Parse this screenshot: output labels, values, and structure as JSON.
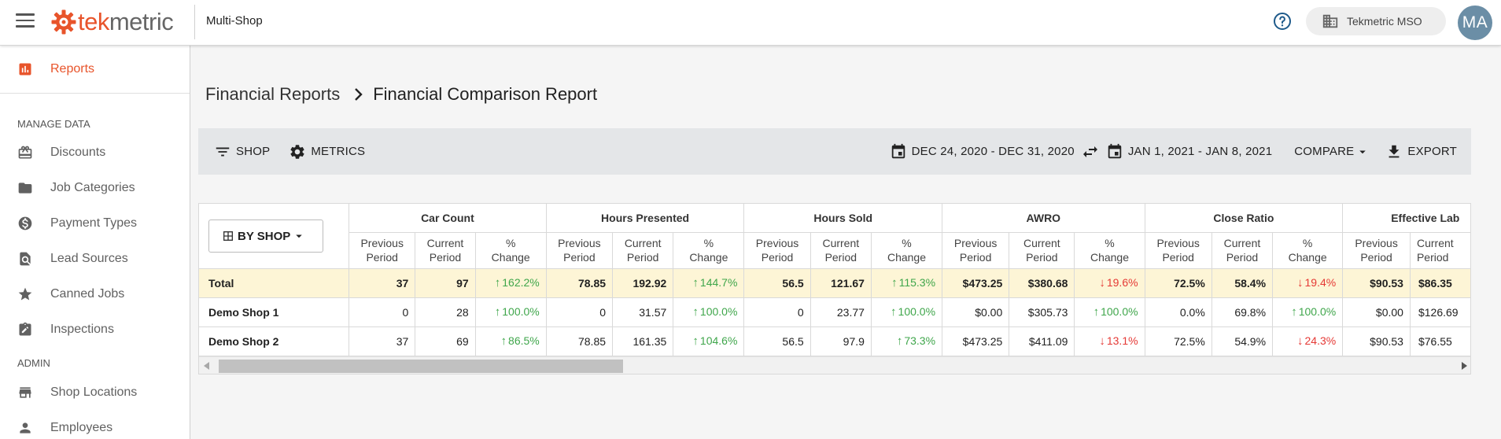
{
  "topbar": {
    "logo_prefix": "tek",
    "logo_suffix": "metric",
    "app_name": "Multi-Shop",
    "shop_selector": "Tekmetric MSO",
    "avatar_initials": "MA",
    "brand_color": "#e8542b"
  },
  "sidebar": {
    "active": "Reports",
    "sections": [
      {
        "title": "MANAGE DATA",
        "items": [
          {
            "label": "Discounts",
            "icon": "gift-box-icon"
          },
          {
            "label": "Job Categories",
            "icon": "folder-icon"
          },
          {
            "label": "Payment Types",
            "icon": "dollar-circle-icon"
          },
          {
            "label": "Lead Sources",
            "icon": "search-document-icon"
          },
          {
            "label": "Canned Jobs",
            "icon": "star-icon"
          },
          {
            "label": "Inspections",
            "icon": "clipboard-edit-icon"
          }
        ]
      },
      {
        "title": "ADMIN",
        "items": [
          {
            "label": "Shop Locations",
            "icon": "store-icon"
          },
          {
            "label": "Employees",
            "icon": "person-icon"
          }
        ]
      }
    ]
  },
  "breadcrumb": {
    "parent": "Financial Reports",
    "current": "Financial Comparison Report"
  },
  "toolbar": {
    "shop": "SHOP",
    "metrics": "METRICS",
    "range_a": "DEC 24, 2020 - DEC 31, 2020",
    "range_b": "JAN 1, 2021 - JAN 8, 2021",
    "compare": "COMPARE",
    "export": "EXPORT"
  },
  "table": {
    "group_by": "BY SHOP",
    "sub_headers": {
      "previous": [
        "Previous",
        "Period"
      ],
      "current": [
        "Current",
        "Period"
      ],
      "change": [
        "%",
        "Change"
      ]
    },
    "groups": [
      "Car Count",
      "Hours Presented",
      "Hours Sold",
      "AWRO",
      "Close Ratio",
      "Effective Lab"
    ],
    "rows": [
      {
        "name": "Total",
        "total": true,
        "cells": [
          [
            "37",
            "97",
            "162.2%",
            "up"
          ],
          [
            "78.85",
            "192.92",
            "144.7%",
            "up"
          ],
          [
            "56.5",
            "121.67",
            "115.3%",
            "up"
          ],
          [
            "$473.25",
            "$380.68",
            "19.6%",
            "down"
          ],
          [
            "72.5%",
            "58.4%",
            "19.4%",
            "down"
          ],
          [
            "$90.53",
            "$86.35"
          ]
        ]
      },
      {
        "name": "Demo Shop 1",
        "total": false,
        "cells": [
          [
            "0",
            "28",
            "100.0%",
            "up"
          ],
          [
            "0",
            "31.57",
            "100.0%",
            "up"
          ],
          [
            "0",
            "23.77",
            "100.0%",
            "up"
          ],
          [
            "$0.00",
            "$305.73",
            "100.0%",
            "up"
          ],
          [
            "0.0%",
            "69.8%",
            "100.0%",
            "up"
          ],
          [
            "$0.00",
            "$126.69"
          ]
        ]
      },
      {
        "name": "Demo Shop 2",
        "total": false,
        "cells": [
          [
            "37",
            "69",
            "86.5%",
            "up"
          ],
          [
            "78.85",
            "161.35",
            "104.6%",
            "up"
          ],
          [
            "56.5",
            "97.9",
            "73.3%",
            "up"
          ],
          [
            "$473.25",
            "$411.09",
            "13.1%",
            "down"
          ],
          [
            "72.5%",
            "54.9%",
            "24.3%",
            "down"
          ],
          [
            "$90.53",
            "$76.55"
          ]
        ]
      }
    ]
  }
}
